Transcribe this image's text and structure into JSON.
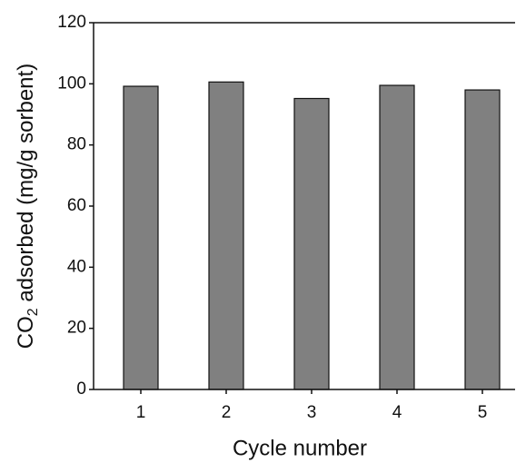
{
  "chart_data": {
    "type": "bar",
    "x_label": "Cycle number",
    "y_label": [
      "CO",
      "2",
      " adsorbed (mg/g sorbent)"
    ],
    "categories": [
      "1",
      "2",
      "3",
      "4",
      "5"
    ],
    "values": [
      99.2,
      100.6,
      95.2,
      99.5,
      98.0
    ],
    "color": "#808080",
    "ylim": [
      0,
      120
    ],
    "yticks": [
      0,
      20,
      40,
      60,
      80,
      100,
      120
    ],
    "grid": false
  }
}
